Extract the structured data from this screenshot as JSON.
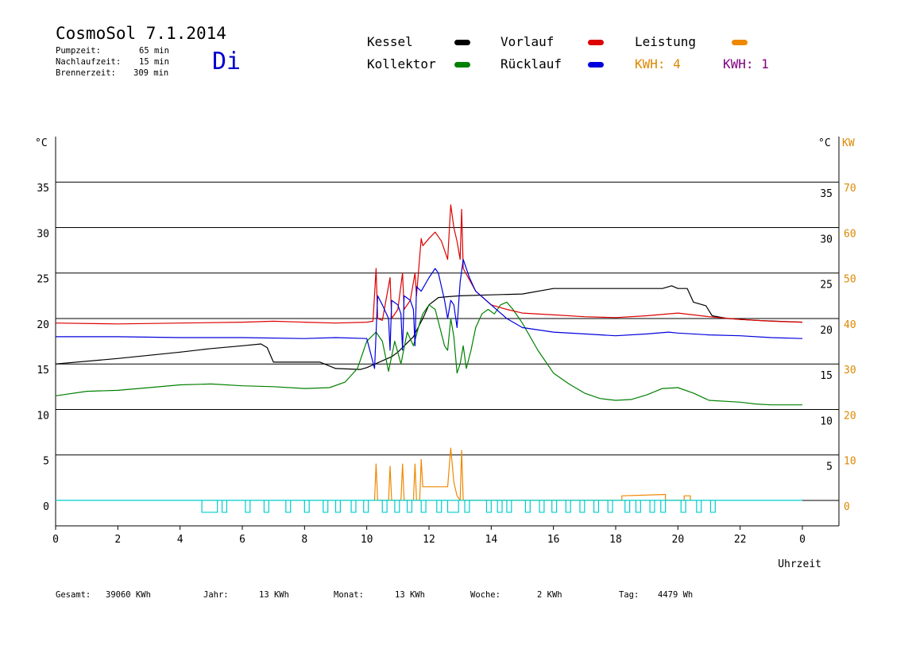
{
  "header": {
    "title": "CosmoSol 7.1.2014",
    "pumpzeit_label": "Pumpzeit:",
    "pumpzeit_value": "65 min",
    "nachlaufzeit_label": "Nachlaufzeit:",
    "nachlaufzeit_value": "15 min",
    "brennerzeit_label": "Brennerzeit:",
    "brennerzeit_value": "309 min",
    "day": "Di"
  },
  "legend": {
    "kessel": "Kessel",
    "kollektor": "Kollektor",
    "vorlauf": "Vorlauf",
    "ruecklauf": "Rücklauf",
    "leistung": "Leistung",
    "kwh_a": "KWH: 4",
    "kwh_b": "KWH: 1"
  },
  "colors": {
    "kessel": "#000000",
    "kollektor": "#008000",
    "vorlauf": "#dd0000",
    "ruecklauf": "#0000dd",
    "leistung": "#ee8800",
    "kwh_b": "#800080",
    "pump": "#00cccc",
    "axis_right_kw": "#dd8800"
  },
  "footer": {
    "gesamt_label": "Gesamt:",
    "gesamt_value": "39060 KWh",
    "jahr_label": "Jahr:",
    "jahr_value": "13 KWh",
    "monat_label": "Monat:",
    "monat_value": "13 KWh",
    "woche_label": "Woche:",
    "woche_value": "2 KWh",
    "tag_label": "Tag:",
    "tag_value": "4479 Wh"
  },
  "chart_data": {
    "type": "line",
    "xlabel": "Uhrzeit",
    "ylabel_left": "°C",
    "ylabel_right": "°C",
    "ylabel_right2": "KW",
    "xlim": [
      0,
      24
    ],
    "ylim": [
      -2.8,
      40
    ],
    "ylim_right2": [
      -5.6,
      80
    ],
    "grid": true,
    "x_ticks": [
      "0",
      "2",
      "4",
      "6",
      "8",
      "10",
      "12",
      "14",
      "16",
      "18",
      "20",
      "22",
      "0"
    ],
    "y_ticks": [
      0,
      5,
      10,
      15,
      20,
      25,
      30,
      35
    ],
    "y_ticks_right2": [
      0,
      10,
      20,
      30,
      40,
      50,
      60,
      70
    ],
    "series": [
      {
        "name": "Kessel",
        "color": "#000000",
        "points": [
          [
            0,
            15.0
          ],
          [
            2,
            15.6
          ],
          [
            4,
            16.3
          ],
          [
            5,
            16.7
          ],
          [
            6,
            17.0
          ],
          [
            6.6,
            17.2
          ],
          [
            6.8,
            16.8
          ],
          [
            7,
            15.2
          ],
          [
            8.5,
            15.2
          ],
          [
            9,
            14.5
          ],
          [
            9.8,
            14.4
          ],
          [
            10,
            14.6
          ],
          [
            10.4,
            15.2
          ],
          [
            10.8,
            15.8
          ],
          [
            11,
            16.3
          ],
          [
            11.5,
            18.0
          ],
          [
            11.8,
            20.0
          ],
          [
            12,
            21.5
          ],
          [
            12.3,
            22.3
          ],
          [
            12.6,
            22.4
          ],
          [
            13,
            22.5
          ],
          [
            14,
            22.6
          ],
          [
            15,
            22.7
          ],
          [
            16,
            23.3
          ],
          [
            18,
            23.3
          ],
          [
            19.5,
            23.3
          ],
          [
            19.8,
            23.6
          ],
          [
            20,
            23.3
          ],
          [
            20.3,
            23.3
          ],
          [
            20.5,
            21.8
          ],
          [
            20.9,
            21.4
          ],
          [
            21.1,
            20.3
          ],
          [
            21.6,
            20.0
          ],
          [
            22.5,
            19.8
          ],
          [
            24,
            19.6
          ]
        ]
      },
      {
        "name": "Kollektor",
        "color": "#008000",
        "points": [
          [
            0,
            11.5
          ],
          [
            1,
            12.0
          ],
          [
            2,
            12.1
          ],
          [
            3,
            12.4
          ],
          [
            4,
            12.7
          ],
          [
            5,
            12.8
          ],
          [
            6,
            12.6
          ],
          [
            7,
            12.5
          ],
          [
            8,
            12.3
          ],
          [
            8.8,
            12.4
          ],
          [
            9.3,
            13.0
          ],
          [
            9.7,
            14.5
          ],
          [
            10,
            17.5
          ],
          [
            10.3,
            18.5
          ],
          [
            10.5,
            17.5
          ],
          [
            10.7,
            14.2
          ],
          [
            10.9,
            17.5
          ],
          [
            11.1,
            15.0
          ],
          [
            11.3,
            18.5
          ],
          [
            11.5,
            17.0
          ],
          [
            11.7,
            19.5
          ],
          [
            11.8,
            20.5
          ],
          [
            12,
            21.5
          ],
          [
            12.2,
            21.0
          ],
          [
            12.35,
            19.0
          ],
          [
            12.5,
            17.0
          ],
          [
            12.6,
            16.5
          ],
          [
            12.7,
            20.0
          ],
          [
            12.8,
            18.0
          ],
          [
            12.9,
            14.0
          ],
          [
            13,
            15.0
          ],
          [
            13.1,
            17.0
          ],
          [
            13.2,
            14.5
          ],
          [
            13.35,
            16.5
          ],
          [
            13.5,
            19.0
          ],
          [
            13.7,
            20.5
          ],
          [
            13.9,
            21.0
          ],
          [
            14.1,
            20.5
          ],
          [
            14.3,
            21.5
          ],
          [
            14.5,
            21.8
          ],
          [
            14.7,
            21.0
          ],
          [
            15,
            19.5
          ],
          [
            15.5,
            16.5
          ],
          [
            16,
            14.0
          ],
          [
            16.5,
            12.8
          ],
          [
            17,
            11.8
          ],
          [
            17.5,
            11.2
          ],
          [
            18,
            11.0
          ],
          [
            18.5,
            11.1
          ],
          [
            19,
            11.6
          ],
          [
            19.5,
            12.3
          ],
          [
            20,
            12.4
          ],
          [
            20.5,
            11.8
          ],
          [
            21,
            11.0
          ],
          [
            22,
            10.8
          ],
          [
            22.5,
            10.6
          ],
          [
            23,
            10.5
          ],
          [
            24,
            10.5
          ]
        ]
      },
      {
        "name": "Vorlauf",
        "color": "#dd0000",
        "points": [
          [
            0,
            19.5
          ],
          [
            2,
            19.4
          ],
          [
            4,
            19.5
          ],
          [
            6,
            19.6
          ],
          [
            7,
            19.7
          ],
          [
            8,
            19.6
          ],
          [
            9,
            19.5
          ],
          [
            10,
            19.6
          ],
          [
            10.2,
            19.7
          ],
          [
            10.3,
            25.5
          ],
          [
            10.35,
            20.0
          ],
          [
            10.5,
            19.8
          ],
          [
            10.75,
            24.5
          ],
          [
            10.8,
            20.0
          ],
          [
            11,
            21.0
          ],
          [
            11.15,
            25.0
          ],
          [
            11.2,
            21.0
          ],
          [
            11.4,
            22.0
          ],
          [
            11.55,
            25.0
          ],
          [
            11.6,
            22.5
          ],
          [
            11.75,
            28.8
          ],
          [
            11.8,
            28.0
          ],
          [
            12,
            28.8
          ],
          [
            12.2,
            29.5
          ],
          [
            12.4,
            28.5
          ],
          [
            12.6,
            26.5
          ],
          [
            12.7,
            32.5
          ],
          [
            12.8,
            30.0
          ],
          [
            12.9,
            28.5
          ],
          [
            13,
            26.5
          ],
          [
            13.05,
            32.0
          ],
          [
            13.1,
            25.5
          ],
          [
            13.5,
            23.0
          ],
          [
            14,
            21.5
          ],
          [
            14.5,
            21.0
          ],
          [
            15,
            20.6
          ],
          [
            16,
            20.4
          ],
          [
            17,
            20.2
          ],
          [
            18,
            20.1
          ],
          [
            19,
            20.3
          ],
          [
            20,
            20.6
          ],
          [
            21,
            20.2
          ],
          [
            22,
            19.9
          ],
          [
            23,
            19.7
          ],
          [
            24,
            19.6
          ]
        ]
      },
      {
        "name": "Rücklauf",
        "color": "#0000dd",
        "points": [
          [
            0,
            18.0
          ],
          [
            2,
            18.0
          ],
          [
            4,
            17.9
          ],
          [
            6,
            17.9
          ],
          [
            8,
            17.8
          ],
          [
            9,
            17.9
          ],
          [
            10,
            17.8
          ],
          [
            10.25,
            14.5
          ],
          [
            10.35,
            22.5
          ],
          [
            10.5,
            21.5
          ],
          [
            10.7,
            20.0
          ],
          [
            10.75,
            16.5
          ],
          [
            10.8,
            22.0
          ],
          [
            11,
            21.5
          ],
          [
            11.1,
            20.5
          ],
          [
            11.15,
            16.5
          ],
          [
            11.2,
            22.5
          ],
          [
            11.4,
            22.0
          ],
          [
            11.5,
            21.0
          ],
          [
            11.55,
            17.0
          ],
          [
            11.6,
            23.5
          ],
          [
            11.75,
            23.0
          ],
          [
            12,
            24.5
          ],
          [
            12.2,
            25.5
          ],
          [
            12.3,
            25.0
          ],
          [
            12.5,
            22.0
          ],
          [
            12.6,
            20.0
          ],
          [
            12.7,
            22.0
          ],
          [
            12.8,
            21.5
          ],
          [
            12.9,
            19.0
          ],
          [
            13,
            24.0
          ],
          [
            13.1,
            26.5
          ],
          [
            13.3,
            24.5
          ],
          [
            13.5,
            23.0
          ],
          [
            14,
            21.5
          ],
          [
            14.5,
            20.0
          ],
          [
            15,
            19.0
          ],
          [
            16,
            18.5
          ],
          [
            17,
            18.3
          ],
          [
            18,
            18.1
          ],
          [
            19,
            18.3
          ],
          [
            19.7,
            18.5
          ],
          [
            20,
            18.4
          ],
          [
            21,
            18.2
          ],
          [
            22,
            18.1
          ],
          [
            23,
            17.9
          ],
          [
            24,
            17.8
          ]
        ]
      },
      {
        "name": "Leistung",
        "color": "#ee8800",
        "axis": "right2",
        "points": [
          [
            10.25,
            0
          ],
          [
            10.3,
            8.0
          ],
          [
            10.35,
            0
          ],
          [
            10.7,
            0
          ],
          [
            10.75,
            7.5
          ],
          [
            10.8,
            0
          ],
          [
            11.1,
            0
          ],
          [
            11.15,
            8.0
          ],
          [
            11.2,
            0
          ],
          [
            11.5,
            0
          ],
          [
            11.55,
            8.0
          ],
          [
            11.6,
            0
          ],
          [
            11.7,
            0
          ],
          [
            11.75,
            9.0
          ],
          [
            11.8,
            3.0
          ],
          [
            12.2,
            3.0
          ],
          [
            12.6,
            3.0
          ],
          [
            12.7,
            11.5
          ],
          [
            12.8,
            4.0
          ],
          [
            12.9,
            1.0
          ],
          [
            13,
            0
          ],
          [
            13.05,
            11.0
          ],
          [
            13.1,
            0
          ],
          [
            18.2,
            0
          ],
          [
            18.2,
            1.0
          ],
          [
            19.6,
            1.3
          ],
          [
            19.6,
            0
          ],
          [
            20.2,
            0
          ],
          [
            20.2,
            1.0
          ],
          [
            20.4,
            1.0
          ],
          [
            20.4,
            0
          ]
        ]
      },
      {
        "name": "Pumpe",
        "color": "#00cccc",
        "points": [
          [
            0,
            0
          ],
          [
            24,
            0
          ]
        ]
      }
    ],
    "pump_pulses": [
      [
        4.7,
        5.2
      ],
      [
        5.35,
        5.5
      ],
      [
        6.1,
        6.25
      ],
      [
        6.7,
        6.85
      ],
      [
        7.4,
        7.55
      ],
      [
        8,
        8.15
      ],
      [
        8.6,
        8.75
      ],
      [
        9,
        9.15
      ],
      [
        9.5,
        9.65
      ],
      [
        9.9,
        10.05
      ],
      [
        10.5,
        10.65
      ],
      [
        10.9,
        11.05
      ],
      [
        11.3,
        11.45
      ],
      [
        11.75,
        11.9
      ],
      [
        12.25,
        12.4
      ],
      [
        12.6,
        12.95
      ],
      [
        13.15,
        13.3
      ],
      [
        13.85,
        14.0
      ],
      [
        14.2,
        14.35
      ],
      [
        14.5,
        14.65
      ],
      [
        15.1,
        15.25
      ],
      [
        15.55,
        15.7
      ],
      [
        15.95,
        16.1
      ],
      [
        16.4,
        16.55
      ],
      [
        16.85,
        17.0
      ],
      [
        17.3,
        17.45
      ],
      [
        17.75,
        17.9
      ],
      [
        18.3,
        18.45
      ],
      [
        18.65,
        18.8
      ],
      [
        19.1,
        19.25
      ],
      [
        19.45,
        19.6
      ],
      [
        20.1,
        20.25
      ],
      [
        20.6,
        20.75
      ],
      [
        21.05,
        21.2
      ]
    ]
  }
}
